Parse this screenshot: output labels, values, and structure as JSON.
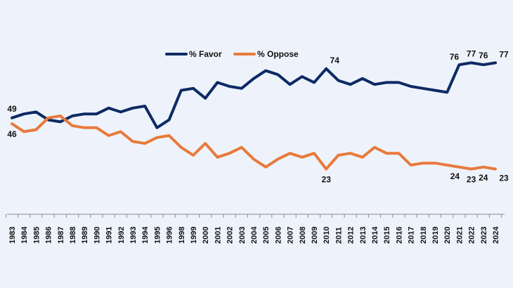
{
  "chart_data": {
    "type": "line",
    "title": "",
    "xlabel": "",
    "ylabel": "",
    "ylim": [
      0,
      100
    ],
    "grid": false,
    "legend": "top-center",
    "x": [
      "1983",
      "1984",
      "1985",
      "1986",
      "1987",
      "1988",
      "1989",
      "1990",
      "1991",
      "1992",
      "1993",
      "1994",
      "1995",
      "1996",
      "1998",
      "1999",
      "2000",
      "2001",
      "2002",
      "2003",
      "2004",
      "2005",
      "2006",
      "2007",
      "2008",
      "2009",
      "2010",
      "2011",
      "2012",
      "2013",
      "2014",
      "2015",
      "2016",
      "2017",
      "2018",
      "2019",
      "2020",
      "2021",
      "2022",
      "2023",
      "2024"
    ],
    "series": [
      {
        "name": "% Favor",
        "color": "#0d2a63",
        "values": [
          49,
          51,
          52,
          48,
          47,
          50,
          51,
          51,
          54,
          52,
          54,
          55,
          44,
          48,
          63,
          64,
          59,
          67,
          65,
          64,
          69,
          73,
          71,
          66,
          70,
          67,
          74,
          68,
          66,
          69,
          66,
          67,
          67,
          65,
          64,
          63,
          62,
          76,
          77,
          76,
          77
        ]
      },
      {
        "name": "% Oppose",
        "color": "#e87a3c",
        "values": [
          46,
          42,
          43,
          49,
          50,
          45,
          44,
          44,
          40,
          42,
          37,
          36,
          39,
          40,
          34,
          30,
          36,
          29,
          31,
          34,
          28,
          24,
          28,
          31,
          29,
          31,
          23,
          30,
          31,
          29,
          34,
          31,
          31,
          25,
          26,
          26,
          25,
          24,
          23,
          24,
          23
        ]
      }
    ],
    "annotations": [
      {
        "series": 0,
        "index": 0,
        "text": "49",
        "pos": "above"
      },
      {
        "series": 1,
        "index": 0,
        "text": "46",
        "pos": "below"
      },
      {
        "series": 0,
        "index": 26,
        "text": "74",
        "pos": "above-right"
      },
      {
        "series": 1,
        "index": 26,
        "text": "23",
        "pos": "below"
      },
      {
        "series": 0,
        "index": 37,
        "text": "76",
        "pos": "above-left"
      },
      {
        "series": 0,
        "index": 38,
        "text": "77",
        "pos": "above"
      },
      {
        "series": 0,
        "index": 39,
        "text": "76",
        "pos": "above"
      },
      {
        "series": 0,
        "index": 40,
        "text": "77",
        "pos": "above-right"
      },
      {
        "series": 1,
        "index": 37,
        "text": "24",
        "pos": "below-left"
      },
      {
        "series": 1,
        "index": 38,
        "text": "23",
        "pos": "below"
      },
      {
        "series": 1,
        "index": 39,
        "text": "24",
        "pos": "below"
      },
      {
        "series": 1,
        "index": 40,
        "text": "23",
        "pos": "below-right"
      }
    ]
  }
}
